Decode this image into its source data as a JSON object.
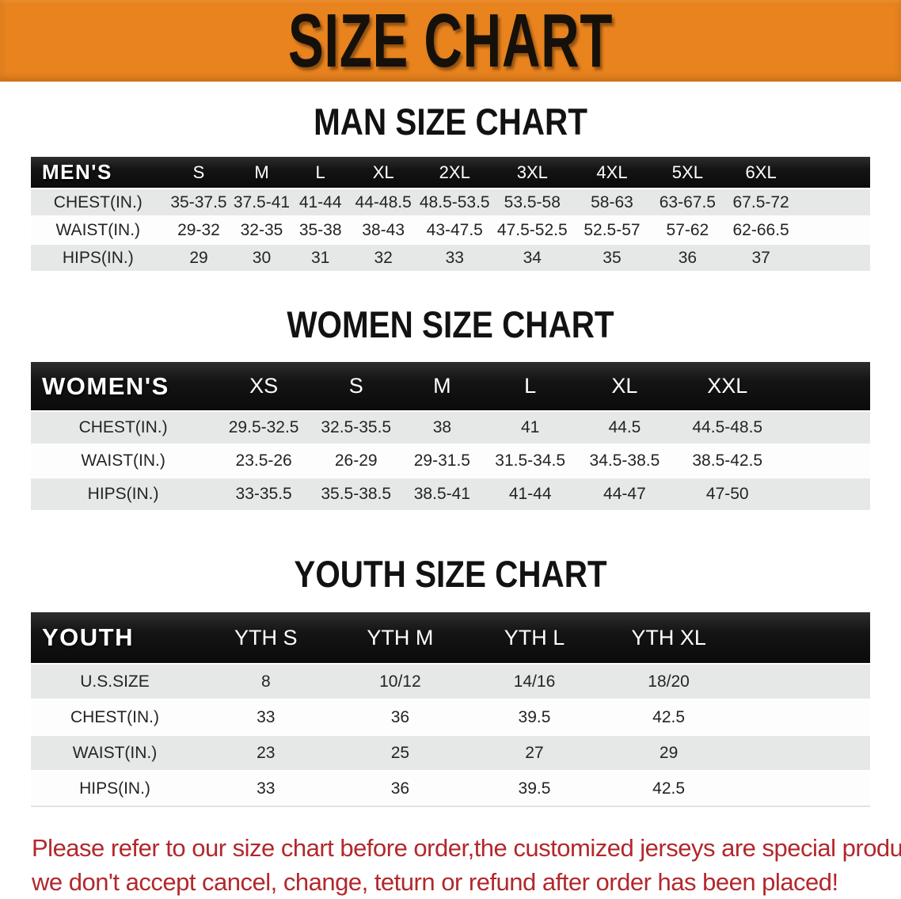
{
  "banner": {
    "title": "SIZE CHART"
  },
  "sections": [
    {
      "id": "men",
      "title": "MAN SIZE CHART",
      "corner": "MEN'S",
      "columns": [
        "S",
        "M",
        "L",
        "XL",
        "2XL",
        "3XL",
        "4XL",
        "5XL",
        "6XL"
      ],
      "rows": [
        {
          "label": "CHEST(IN.)",
          "values": [
            "35-37.5",
            "37.5-41",
            "41-44",
            "44-48.5",
            "48.5-53.5",
            "53.5-58",
            "58-63",
            "63-67.5",
            "67.5-72"
          ]
        },
        {
          "label": "WAIST(IN.)",
          "values": [
            "29-32",
            "32-35",
            "35-38",
            "38-43",
            "43-47.5",
            "47.5-52.5",
            "52.5-57",
            "57-62",
            "62-66.5"
          ]
        },
        {
          "label": "HIPS(IN.)",
          "values": [
            "29",
            "30",
            "31",
            "32",
            "33",
            "34",
            "35",
            "36",
            "37"
          ]
        }
      ]
    },
    {
      "id": "women",
      "title": "WOMEN SIZE CHART",
      "corner": "WOMEN'S",
      "columns": [
        "XS",
        "S",
        "M",
        "L",
        "XL",
        "XXL"
      ],
      "rows": [
        {
          "label": "CHEST(IN.)",
          "values": [
            "29.5-32.5",
            "32.5-35.5",
            "38",
            "41",
            "44.5",
            "44.5-48.5"
          ]
        },
        {
          "label": "WAIST(IN.)",
          "values": [
            "23.5-26",
            "26-29",
            "29-31.5",
            "31.5-34.5",
            "34.5-38.5",
            "38.5-42.5"
          ]
        },
        {
          "label": "HIPS(IN.)",
          "values": [
            "33-35.5",
            "35.5-38.5",
            "38.5-41",
            "41-44",
            "44-47",
            "47-50"
          ]
        }
      ]
    },
    {
      "id": "youth",
      "title": "YOUTH SIZE CHART",
      "corner": "YOUTH",
      "columns": [
        "YTH S",
        "YTH M",
        "YTH L",
        "YTH XL"
      ],
      "rows": [
        {
          "label": "U.S.SIZE",
          "values": [
            "8",
            "10/12",
            "14/16",
            "18/20"
          ]
        },
        {
          "label": "CHEST(IN.)",
          "values": [
            "33",
            "36",
            "39.5",
            "42.5"
          ]
        },
        {
          "label": "WAIST(IN.)",
          "values": [
            "23",
            "25",
            "27",
            "29"
          ]
        },
        {
          "label": "HIPS(IN.)",
          "values": [
            "33",
            "36",
            "39.5",
            "42.5"
          ]
        }
      ]
    }
  ],
  "notice": {
    "line1": "Please refer to our size chart before order,the customized jerseys are special products,",
    "line2": "we don't accept cancel, change, teturn or refund after order has been placed!"
  },
  "colors": {
    "banner_bg": "#E8831E",
    "header_bg": "#151515",
    "row_alt": "#E6E8E8",
    "notice_text": "#B2282C"
  }
}
